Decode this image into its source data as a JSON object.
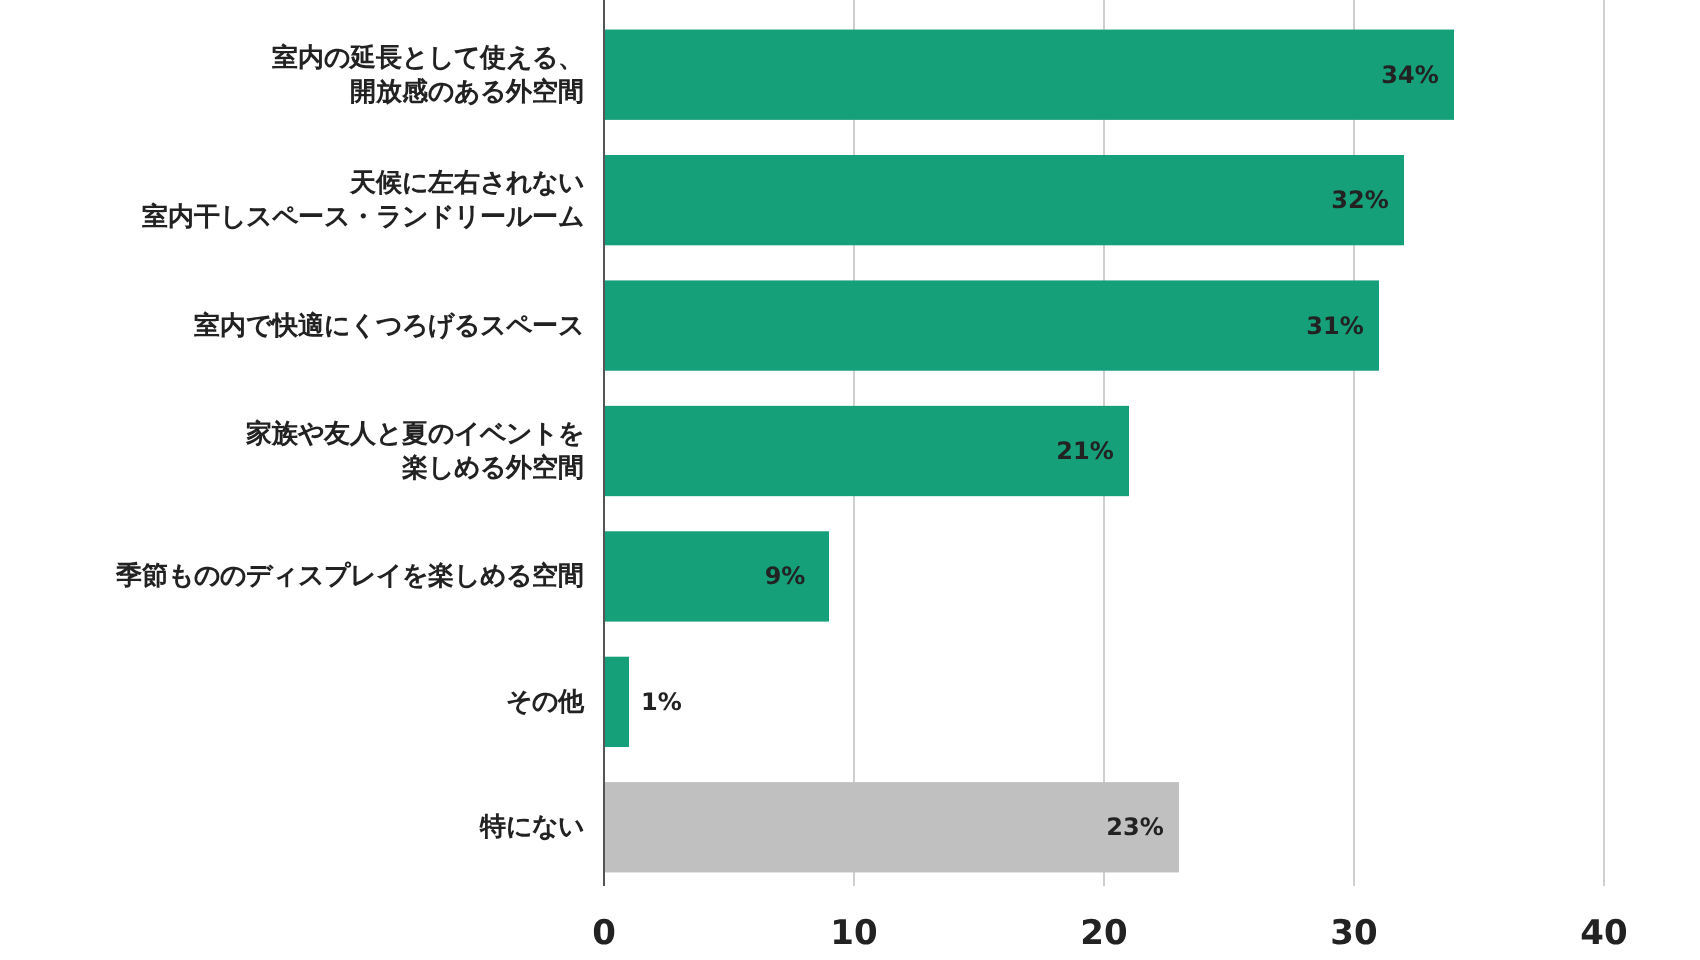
{
  "chart_data": {
    "type": "bar",
    "orientation": "horizontal",
    "categories": [
      "室内の延長として使える、開放感のある外空間",
      "天候に左右されない室内干しスペース・ランドリールーム",
      "室内で快適にくつろげるスペース",
      "家族や友人と夏のイベントを楽しめる外空間",
      "季節もののディスプレイを楽しめる空間",
      "その他",
      "特にない"
    ],
    "values": [
      34,
      32,
      31,
      21,
      9,
      1,
      23
    ],
    "colors": [
      "#16a07a",
      "#16a07a",
      "#16a07a",
      "#16a07a",
      "#16a07a",
      "#16a07a",
      "#c0c0c0"
    ],
    "value_labels": [
      "34%",
      "32%",
      "31%",
      "21%",
      "9%",
      "1%",
      "23%"
    ],
    "xlim": [
      0,
      40
    ],
    "xticks": [
      0,
      10,
      20,
      30,
      40
    ],
    "grid": "x"
  }
}
